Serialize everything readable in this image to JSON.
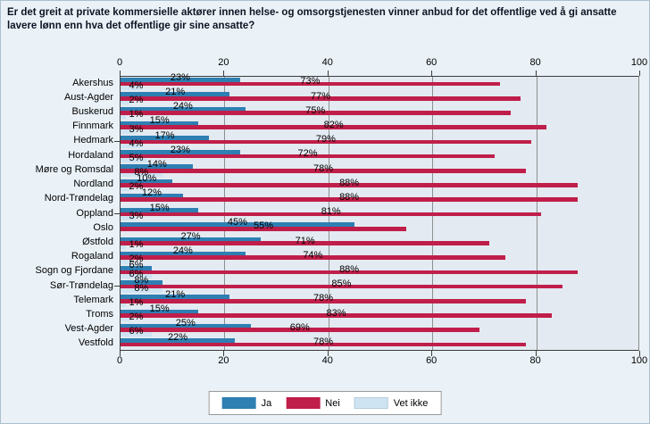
{
  "title": "Er det greit at private kommersielle aktører innen helse- og omsorgstjenesten vinner anbud for det offentlige ved å gi ansatte lavere lønn enn hva det offentlige gir sine ansatte?",
  "colors": {
    "page_background": "#eaf2f8",
    "plot_background": "#e3eaf1",
    "gridline": "#8f8f8f",
    "axis": "#3c3c3c",
    "ja": "#2e7fb2",
    "nei": "#c01e4a",
    "vet_ikke": "#cfe4f2"
  },
  "chart_data": {
    "type": "bar",
    "orientation": "horizontal",
    "title": "Er det greit at private kommersielle aktører innen helse- og omsorgstjenesten vinner anbud for det offentlige ved å gi ansatte lavere lønn enn hva det offentlige gir sine ansatte?",
    "categories": [
      "Akershus",
      "Aust-Agder",
      "Buskerud",
      "Finnmark",
      "Hedmark",
      "Hordaland",
      "Møre og Romsdal",
      "Nordland",
      "Nord-Trøndelag",
      "Oppland",
      "Oslo",
      "Østfold",
      "Rogaland",
      "Sogn og Fjordane",
      "Sør-Trøndelag",
      "Telemark",
      "Troms",
      "Vest-Agder",
      "Vestfold"
    ],
    "series": [
      {
        "name": "Ja",
        "color": "#2e7fb2",
        "values": [
          23,
          21,
          24,
          15,
          17,
          23,
          14,
          10,
          12,
          15,
          45,
          27,
          24,
          6,
          8,
          21,
          15,
          25,
          22
        ]
      },
      {
        "name": "Nei",
        "color": "#c01e4a",
        "values": [
          73,
          77,
          75,
          82,
          79,
          72,
          78,
          88,
          88,
          81,
          55,
          71,
          74,
          88,
          85,
          78,
          83,
          69,
          78
        ]
      },
      {
        "name": "Vet ikke",
        "color": "#cfe4f2",
        "values": [
          4,
          2,
          1,
          3,
          4,
          5,
          8,
          2,
          0,
          3,
          0,
          1,
          2,
          6,
          8,
          1,
          2,
          6,
          0
        ]
      }
    ],
    "value_suffix": "%",
    "x_ticks": [
      0,
      20,
      40,
      60,
      80,
      100
    ],
    "xlim": [
      0,
      100
    ],
    "grid": true,
    "legend_position": "bottom"
  }
}
